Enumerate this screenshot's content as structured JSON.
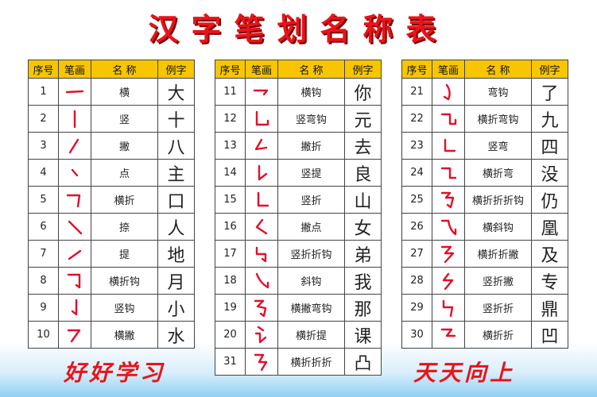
{
  "title": "汉字笔划名称表",
  "tables": [
    {
      "header": [
        "序号",
        "笔画",
        "名 称",
        "例字"
      ],
      "rows": [
        [
          1,
          "横",
          "大"
        ],
        [
          2,
          "竖",
          "十"
        ],
        [
          3,
          "撇",
          "八"
        ],
        [
          4,
          "点",
          "主"
        ],
        [
          5,
          "横折",
          "口"
        ],
        [
          6,
          "捺",
          "人"
        ],
        [
          7,
          "提",
          "地"
        ],
        [
          8,
          "横折钩",
          "月"
        ],
        [
          9,
          "竖钩",
          "小"
        ],
        [
          10,
          "横撇",
          "水"
        ]
      ]
    },
    {
      "header": [
        "序号",
        "笔画",
        "名 称",
        "例字"
      ],
      "rows": [
        [
          11,
          "横钩",
          "你"
        ],
        [
          12,
          "竖弯钩",
          "元"
        ],
        [
          13,
          "撇折",
          "去"
        ],
        [
          14,
          "竖提",
          "良"
        ],
        [
          15,
          "竖折",
          "山"
        ],
        [
          16,
          "撇点",
          "女"
        ],
        [
          17,
          "竖折折钩",
          "弟"
        ],
        [
          18,
          "斜钩",
          "我"
        ],
        [
          19,
          "横撇弯钩",
          "那"
        ],
        [
          20,
          "横折提",
          "课"
        ],
        [
          31,
          "横折折折",
          "凸"
        ]
      ]
    },
    {
      "header": [
        "序号",
        "笔画",
        "名 称",
        "例字"
      ],
      "rows": [
        [
          21,
          "弯钩",
          "了"
        ],
        [
          22,
          "横折弯钩",
          "九"
        ],
        [
          23,
          "竖弯",
          "四"
        ],
        [
          24,
          "横折弯",
          "没"
        ],
        [
          25,
          "横折折折钩",
          "仍"
        ],
        [
          26,
          "横斜钩",
          "凰"
        ],
        [
          27,
          "横折折撇",
          "及"
        ],
        [
          28,
          "竖折撇",
          "专"
        ],
        [
          29,
          "竖折折",
          "鼎"
        ],
        [
          30,
          "横折折",
          "凹"
        ]
      ]
    }
  ],
  "footer_left": "好好学习",
  "footer_right": "天天向上"
}
